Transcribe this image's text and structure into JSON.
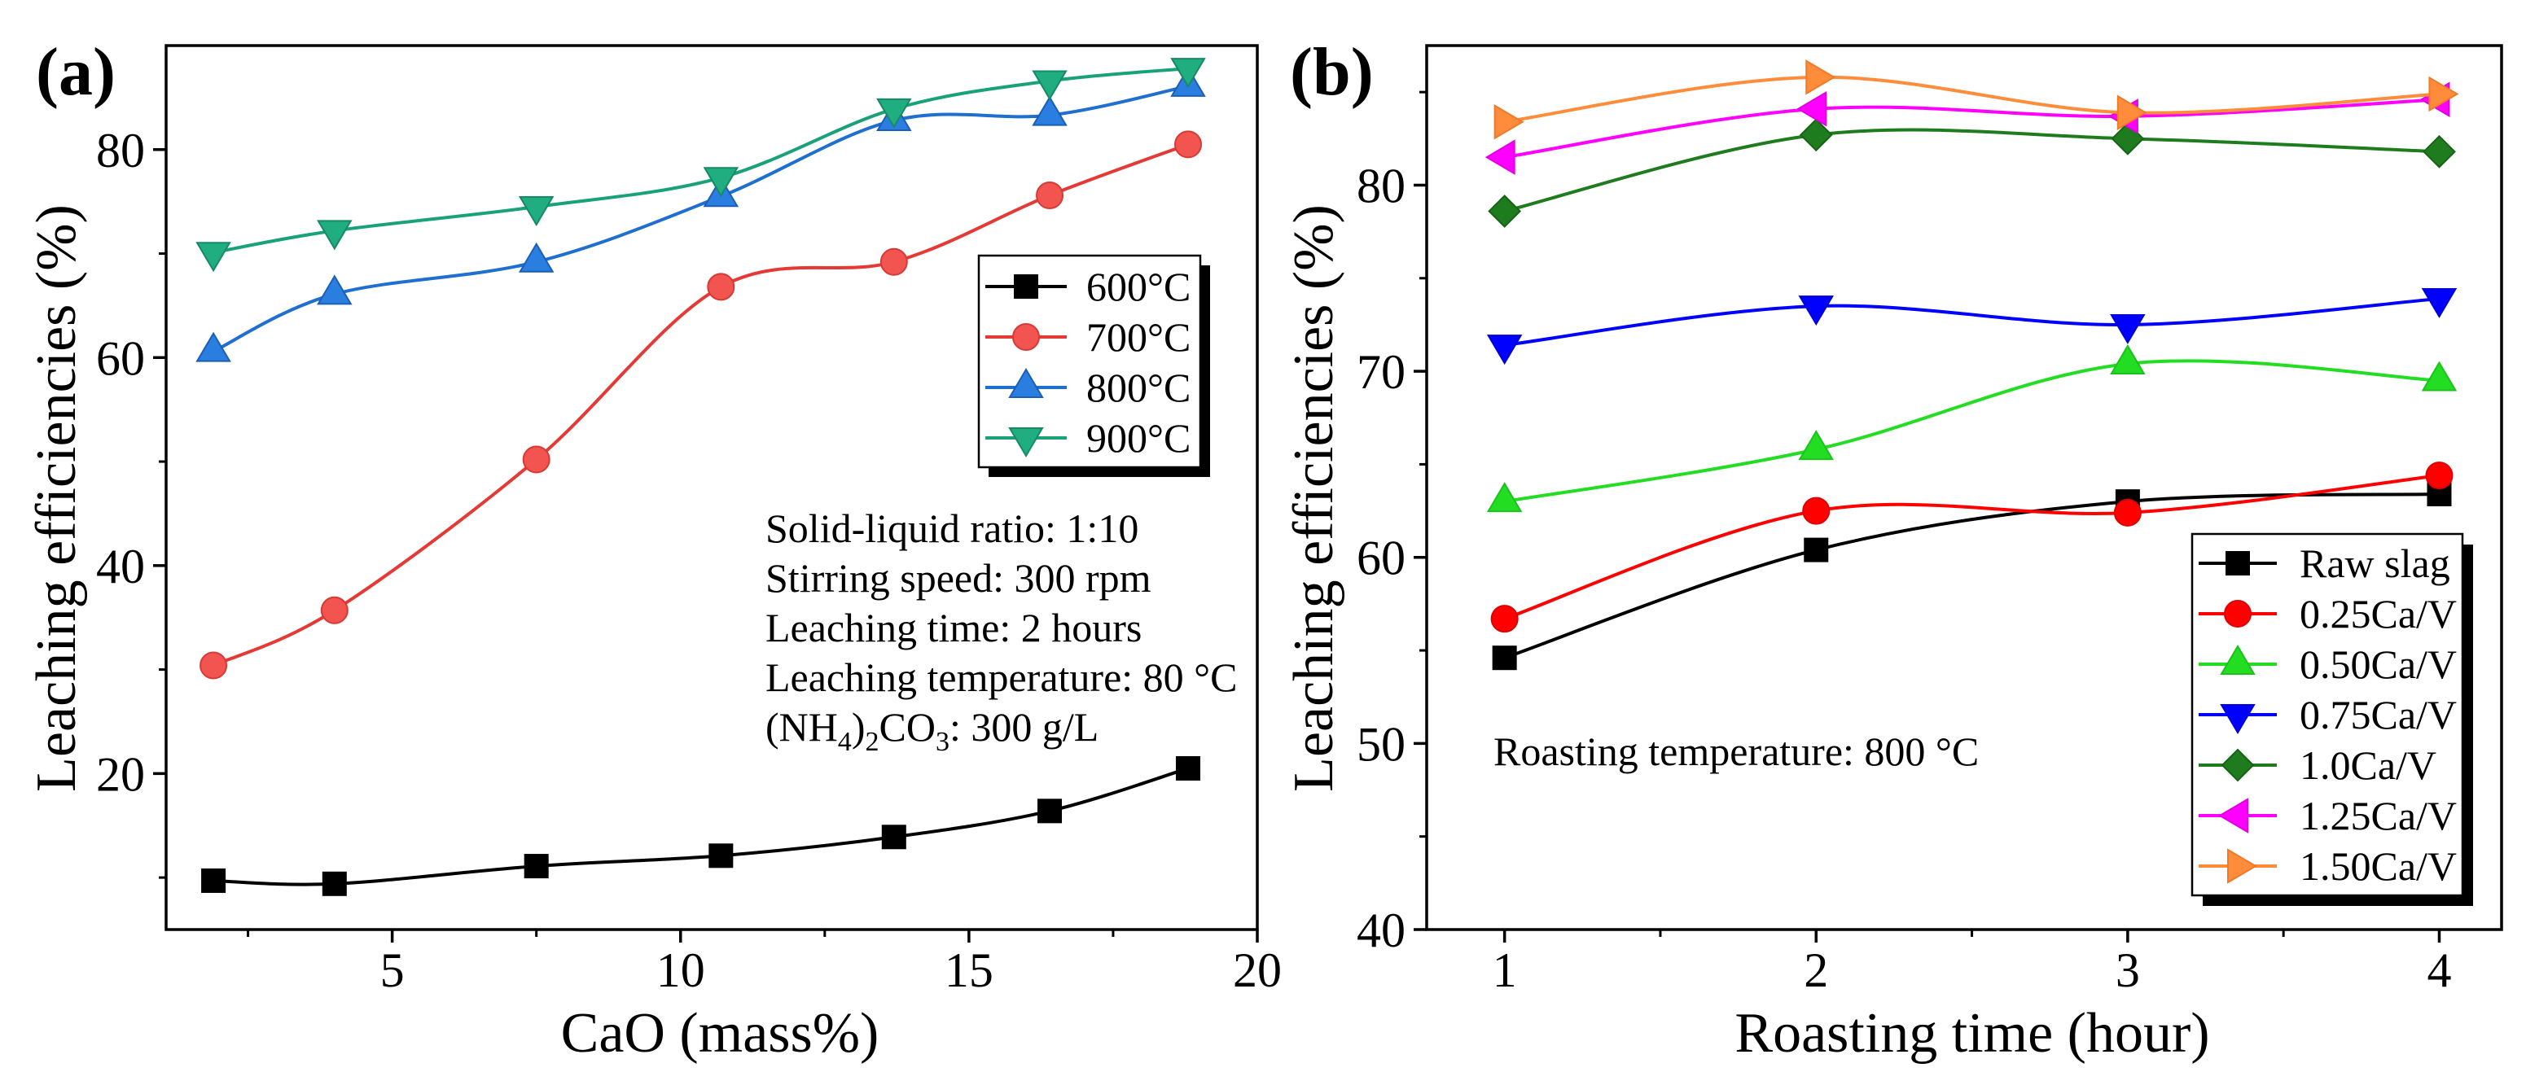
{
  "chart_data": [
    {
      "type": "line",
      "panel_label": "(a)",
      "title": "",
      "xlabel": "CaO (mass%)",
      "ylabel": "Leaching efficiencies (%)",
      "xlim": [
        1.08,
        20
      ],
      "ylim": [
        5,
        90
      ],
      "xticks": [
        5,
        10,
        15,
        20
      ],
      "yticks": [
        20,
        40,
        60,
        80
      ],
      "x_minor_ticks": [
        2.5,
        7.5,
        12.5,
        17.5
      ],
      "y_minor_ticks": [
        10,
        30,
        50,
        70
      ],
      "grid": false,
      "smooth": true,
      "x": [
        1.9,
        4.0,
        7.5,
        10.7,
        13.7,
        16.4,
        18.8
      ],
      "series": [
        {
          "name": "600°C",
          "values": [
            9.7,
            9.4,
            11.1,
            12.1,
            13.9,
            16.4,
            20.5
          ],
          "marker": "square",
          "color": "#000000",
          "marker_fill": "#000000",
          "marker_edge": "#000000"
        },
        {
          "name": "700°C",
          "values": [
            30.4,
            35.7,
            50.2,
            66.8,
            69.2,
            75.6,
            80.5
          ],
          "marker": "circle",
          "color": "#e53935",
          "marker_fill": "#f25550",
          "marker_edge": "#d63a33"
        },
        {
          "name": "800°C",
          "values": [
            60.6,
            66.1,
            69.2,
            75.5,
            82.8,
            83.3,
            86.1
          ],
          "marker": "triangle-up",
          "color": "#1f6fd0",
          "marker_fill": "#2a7ee0",
          "marker_edge": "#1b5eb5"
        },
        {
          "name": "900°C",
          "values": [
            70.1,
            72.2,
            74.5,
            77.3,
            83.9,
            86.6,
            87.8
          ],
          "marker": "triangle-down",
          "color": "#19a27a",
          "marker_fill": "#20ad80",
          "marker_edge": "#168a65"
        }
      ],
      "legend_position": "center-right",
      "annotation": {
        "lines": [
          "Solid-liquid ratio: 1:10",
          "Stirring speed: 300 rpm",
          "Leaching time: 2 hours",
          "Leaching temperature: 80 °C"
        ],
        "formula": [
          {
            "text": "(NH",
            "sub": false
          },
          {
            "text": "4",
            "sub": true
          },
          {
            "text": ")",
            "sub": false
          },
          {
            "text": "2",
            "sub": true
          },
          {
            "text": "CO",
            "sub": false
          },
          {
            "text": "3",
            "sub": true
          },
          {
            "text": ": 300 g/L",
            "sub": false
          }
        ]
      }
    },
    {
      "type": "line",
      "panel_label": "(b)",
      "title": "",
      "xlabel": "Roasting time (hour)",
      "ylabel": "Leaching efficiencies (%)",
      "xlim": [
        0.75,
        4.2
      ],
      "ylim": [
        40,
        87.5
      ],
      "xticks": [
        1,
        2,
        3,
        4
      ],
      "yticks": [
        40,
        50,
        60,
        70,
        80
      ],
      "x_minor_ticks": [
        1.5,
        2.5,
        3.5
      ],
      "y_minor_ticks": [
        45,
        55,
        65,
        75,
        85
      ],
      "grid": false,
      "smooth": true,
      "x": [
        1,
        2,
        3,
        4
      ],
      "series": [
        {
          "name": "Raw slag",
          "values": [
            54.6,
            60.4,
            63.0,
            63.4
          ],
          "marker": "square",
          "color": "#000000",
          "marker_fill": "#000000",
          "marker_edge": "#000000"
        },
        {
          "name": "0.25Ca/V",
          "values": [
            56.7,
            62.5,
            62.4,
            64.4
          ],
          "marker": "circle",
          "color": "#ff0000",
          "marker_fill": "#ff0000",
          "marker_edge": "#e00000"
        },
        {
          "name": "0.50Ca/V",
          "values": [
            63.0,
            65.8,
            70.4,
            69.5
          ],
          "marker": "triangle-up",
          "color": "#22dd22",
          "marker_fill": "#22dd22",
          "marker_edge": "#1cc21c"
        },
        {
          "name": "0.75Ca/V",
          "values": [
            71.4,
            73.5,
            72.5,
            73.9
          ],
          "marker": "triangle-down",
          "color": "#0000ff",
          "marker_fill": "#0000ff",
          "marker_edge": "#0000d8"
        },
        {
          "name": "1.0Ca/V",
          "values": [
            78.6,
            82.7,
            82.5,
            81.8
          ],
          "marker": "diamond",
          "color": "#1e7b1e",
          "marker_fill": "#1e7b1e",
          "marker_edge": "#176317"
        },
        {
          "name": "1.25Ca/V",
          "values": [
            81.5,
            84.1,
            83.7,
            84.6
          ],
          "marker": "triangle-left",
          "color": "#ff00ff",
          "marker_fill": "#ff00ff",
          "marker_edge": "#e000e0"
        },
        {
          "name": "1.50Ca/V",
          "values": [
            83.4,
            85.8,
            83.9,
            84.9
          ],
          "marker": "triangle-right",
          "color": "#ff8c3a",
          "marker_fill": "#ff8c3a",
          "marker_edge": "#f07a28"
        }
      ],
      "legend_position": "lower-right",
      "annotation": {
        "lines": [
          "Roasting temperature: 800 °C"
        ]
      }
    }
  ]
}
